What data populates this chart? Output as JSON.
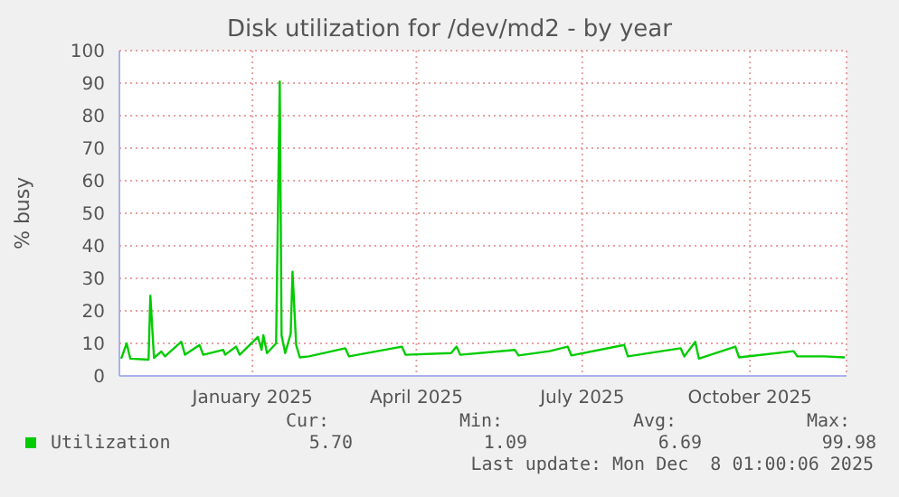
{
  "chart_data": {
    "type": "line",
    "title": "Disk utilization for /dev/md2 - by year",
    "ylabel": "% busy",
    "x": [
      "2024-11-05",
      "2024-11-08",
      "2024-11-10",
      "2024-11-20",
      "2024-11-21",
      "2024-11-23",
      "2024-11-27",
      "2024-11-29",
      "2024-12-08",
      "2024-12-10",
      "2024-12-18",
      "2024-12-20",
      "2024-12-31",
      "2025-01-01",
      "2025-01-07",
      "2025-01-09",
      "2025-01-19",
      "2025-01-21",
      "2025-01-22",
      "2025-01-24",
      "2025-01-29",
      "2025-01-31",
      "2025-02-01",
      "2025-02-03",
      "2025-02-06",
      "2025-02-07",
      "2025-02-09",
      "2025-02-11",
      "2025-02-16",
      "2025-03-08",
      "2025-03-10",
      "2025-04-08",
      "2025-04-10",
      "2025-05-05",
      "2025-05-08",
      "2025-05-10",
      "2025-06-09",
      "2025-06-11",
      "2025-06-28",
      "2025-07-08",
      "2025-07-10",
      "2025-08-08",
      "2025-08-10",
      "2025-09-08",
      "2025-09-10",
      "2025-09-16",
      "2025-09-18",
      "2025-10-08",
      "2025-10-10",
      "2025-11-09",
      "2025-11-11",
      "2025-11-26",
      "2025-12-07"
    ],
    "series": [
      {
        "name": "Utilization",
        "color": "#00cc00",
        "values": [
          5.3,
          10,
          5.3,
          5,
          24.7,
          5.5,
          7.5,
          6,
          10.5,
          6.5,
          9.5,
          6.5,
          8,
          6.5,
          9,
          6.5,
          12,
          8,
          12.5,
          7,
          10,
          90.5,
          12.4,
          7,
          13,
          32,
          9.5,
          5.7,
          6,
          8.5,
          6,
          9,
          6.5,
          7,
          9,
          6.5,
          8,
          6.3,
          7.6,
          9,
          6.3,
          9.5,
          6,
          8.5,
          6,
          10.5,
          5.3,
          9,
          5.7,
          7.6,
          6,
          6,
          5.7
        ]
      }
    ],
    "xlim": [
      "2024-11-04",
      "2025-12-08"
    ],
    "xticks": [
      {
        "value": "2025-01-16",
        "label": "January 2025"
      },
      {
        "value": "2025-04-16",
        "label": "April 2025"
      },
      {
        "value": "2025-07-16",
        "label": "July 2025"
      },
      {
        "value": "2025-10-16",
        "label": "October 2025"
      }
    ],
    "ylim": [
      0,
      100
    ],
    "yticks": [
      0,
      10,
      20,
      30,
      40,
      50,
      60,
      70,
      80,
      90,
      100
    ],
    "grid": true,
    "legend": "bottom left",
    "marker": "none",
    "line_style": "solid",
    "annotations": [
      "Cur:",
      "Min:",
      "Avg:",
      "Max:",
      "5.70",
      "1.09",
      "6.69",
      "99.98",
      "Last update: Mon Dec  8 01:00:06 2025"
    ]
  }
}
